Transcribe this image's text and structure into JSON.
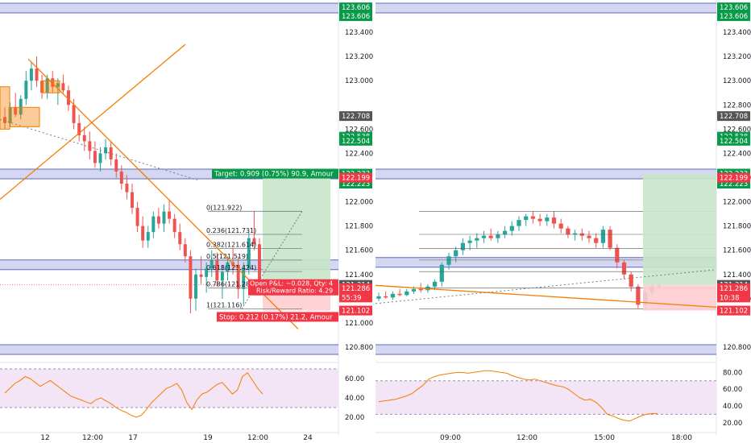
{
  "colors": {
    "up": "#26a69a",
    "down": "#ef5350",
    "zone_fill": "#c5cae9",
    "zone_line": "#5c6bc0",
    "orange": "#f57c00",
    "target_fill": "#c8e6c9",
    "stop_fill": "#ffcdd2",
    "rsi_fill": "#f3e5f5",
    "rsi_line": "#f57c00",
    "label_green": "#089949",
    "label_red": "#f23645",
    "label_dark": "#555555",
    "fib_line": "#787b86"
  },
  "chart_data": [
    {
      "type": "line",
      "panel": "left-candlestick",
      "ylim": [
        120.72,
        123.64
      ],
      "y_ticks": [
        120.8,
        121.0,
        121.4,
        121.6,
        121.8,
        122.0,
        122.4,
        122.6,
        123.0,
        123.2,
        123.4
      ],
      "x_tick_labels": [
        "12",
        "12:00",
        "17",
        "19",
        "12:00",
        "24"
      ],
      "price_labels": [
        {
          "text": "123.606",
          "value": 123.606,
          "kind": "green"
        },
        {
          "text": "123.606",
          "value": 123.606,
          "kind": "green",
          "offset": 1
        },
        {
          "text": "122.708",
          "value": 122.708,
          "kind": "dark"
        },
        {
          "text": "122.538",
          "value": 122.538,
          "kind": "green"
        },
        {
          "text": "122.504",
          "value": 122.504,
          "kind": "green"
        },
        {
          "text": "122.233",
          "value": 122.233,
          "kind": "green"
        },
        {
          "text": "122.223",
          "value": 122.223,
          "kind": "green",
          "offset": 1
        },
        {
          "text": "122.199",
          "value": 122.199,
          "kind": "red"
        },
        {
          "text": "121.314",
          "value": 121.314,
          "kind": "dark"
        },
        {
          "text": "121.286",
          "value": 121.286,
          "kind": "red"
        },
        {
          "text": "55:39",
          "value": 121.21,
          "kind": "red"
        },
        {
          "text": "121.102",
          "value": 121.102,
          "kind": "red"
        }
      ],
      "zones": [
        123.6,
        122.23,
        121.48,
        120.78
      ],
      "fib_levels": [
        {
          "text": "0(121.922)",
          "value": 121.922
        },
        {
          "text": "0.236(121.731)",
          "value": 121.731
        },
        {
          "text": "0.382(121.614)",
          "value": 121.614
        },
        {
          "text": "0.5(121.519)",
          "value": 121.519
        },
        {
          "text": "0.618(121.424)",
          "value": 121.424
        },
        {
          "text": "0.786(121.288)",
          "value": 121.288
        },
        {
          "text": "1(121.116)",
          "value": 121.116
        }
      ],
      "trade_labels": {
        "target": "Target: 0.909 (0.75%) 90.9, Amour",
        "stop": "Stop: 0.212 (0.17%) 21.2, Amour",
        "pnl": "Open P&L: −0.028, Qty: 4",
        "rr": "Risk/Reward Ratio: 4.29"
      },
      "candles": [
        [
          122.7,
          122.78,
          122.6,
          122.65
        ],
        [
          122.65,
          122.82,
          122.62,
          122.78
        ],
        [
          122.78,
          122.9,
          122.7,
          122.72
        ],
        [
          122.72,
          122.88,
          122.68,
          122.85
        ],
        [
          122.85,
          123.08,
          122.8,
          123.0
        ],
        [
          123.0,
          123.15,
          122.92,
          123.1
        ],
        [
          123.1,
          123.2,
          122.95,
          123.0
        ],
        [
          123.0,
          123.05,
          122.85,
          122.9
        ],
        [
          122.9,
          123.05,
          122.85,
          123.02
        ],
        [
          123.02,
          123.08,
          122.9,
          122.95
        ],
        [
          122.95,
          123.02,
          122.8,
          122.98
        ],
        [
          122.98,
          123.05,
          122.9,
          122.92
        ],
        [
          122.92,
          122.96,
          122.75,
          122.8
        ],
        [
          122.8,
          122.85,
          122.6,
          122.65
        ],
        [
          122.65,
          122.72,
          122.5,
          122.55
        ],
        [
          122.55,
          122.62,
          122.42,
          122.5
        ],
        [
          122.5,
          122.58,
          122.35,
          122.42
        ],
        [
          122.42,
          122.5,
          122.28,
          122.32
        ],
        [
          122.32,
          122.45,
          122.25,
          122.4
        ],
        [
          122.4,
          122.52,
          122.35,
          122.45
        ],
        [
          122.45,
          122.5,
          122.3,
          122.35
        ],
        [
          122.35,
          122.4,
          122.2,
          122.25
        ],
        [
          122.25,
          122.3,
          122.1,
          122.15
        ],
        [
          122.15,
          122.22,
          122.02,
          122.08
        ],
        [
          122.08,
          122.15,
          121.9,
          121.95
        ],
        [
          121.95,
          122.0,
          121.75,
          121.8
        ],
        [
          121.8,
          121.88,
          121.62,
          121.68
        ],
        [
          121.68,
          121.8,
          121.62,
          121.75
        ],
        [
          121.75,
          121.92,
          121.7,
          121.88
        ],
        [
          121.88,
          121.95,
          121.78,
          121.82
        ],
        [
          121.82,
          121.98,
          121.75,
          121.92
        ],
        [
          121.92,
          122.02,
          121.82,
          121.86
        ],
        [
          121.86,
          121.9,
          121.7,
          121.75
        ],
        [
          121.75,
          121.82,
          121.6,
          121.65
        ],
        [
          121.65,
          121.7,
          121.5,
          121.55
        ],
        [
          121.55,
          121.6,
          121.08,
          121.2
        ],
        [
          121.2,
          121.45,
          121.1,
          121.4
        ],
        [
          121.4,
          121.55,
          121.32,
          121.38
        ],
        [
          121.38,
          121.5,
          121.25,
          121.45
        ],
        [
          121.45,
          121.6,
          121.38,
          121.52
        ],
        [
          121.52,
          121.58,
          121.3,
          121.35
        ],
        [
          121.35,
          121.48,
          121.2,
          121.42
        ],
        [
          121.42,
          121.55,
          121.35,
          121.5
        ],
        [
          121.5,
          121.62,
          121.4,
          121.48
        ],
        [
          121.48,
          121.55,
          121.2,
          121.28
        ],
        [
          121.28,
          121.5,
          121.15,
          121.45
        ],
        [
          121.45,
          121.75,
          121.4,
          121.7
        ],
        [
          121.7,
          121.92,
          121.6,
          121.65
        ],
        [
          121.65,
          121.7,
          121.25,
          121.3
        ]
      ],
      "rsi": {
        "ylim": [
          10,
          75
        ],
        "ticks": [
          20.0,
          40.0,
          60.0
        ],
        "band": [
          30,
          70
        ],
        "values": [
          45,
          50,
          55,
          58,
          62,
          60,
          56,
          52,
          55,
          58,
          54,
          50,
          46,
          42,
          40,
          38,
          36,
          34,
          38,
          40,
          37,
          34,
          30,
          27,
          25,
          22,
          20,
          22,
          28,
          35,
          40,
          45,
          50,
          52,
          55,
          48,
          35,
          28,
          38,
          44,
          46,
          50,
          54,
          56,
          50,
          44,
          48,
          62,
          66,
          58,
          50,
          44
        ]
      }
    },
    {
      "type": "line",
      "panel": "right-candlestick",
      "ylim": [
        120.72,
        123.64
      ],
      "y_ticks": [
        120.8,
        121.2,
        121.4,
        121.6,
        121.8,
        122.0,
        122.2,
        122.4,
        122.6,
        122.8,
        123.0,
        123.2,
        123.4
      ],
      "x_tick_labels": [
        "09:00",
        "12:00",
        "15:00",
        "18:00"
      ],
      "price_labels": [
        {
          "text": "123.606",
          "value": 123.606,
          "kind": "green"
        },
        {
          "text": "123.606",
          "value": 123.606,
          "kind": "green",
          "offset": 1
        },
        {
          "text": "122.708",
          "value": 122.708,
          "kind": "dark"
        },
        {
          "text": "122.538",
          "value": 122.538,
          "kind": "green"
        },
        {
          "text": "122.504",
          "value": 122.504,
          "kind": "green"
        },
        {
          "text": "122.233",
          "value": 122.233,
          "kind": "green"
        },
        {
          "text": "122.223",
          "value": 122.223,
          "kind": "green",
          "offset": 1
        },
        {
          "text": "122.199",
          "value": 122.199,
          "kind": "red"
        },
        {
          "text": "121.314",
          "value": 121.314,
          "kind": "dark"
        },
        {
          "text": "121.286",
          "value": 121.286,
          "kind": "red"
        },
        {
          "text": "10:38",
          "value": 121.21,
          "kind": "red"
        },
        {
          "text": "121.102",
          "value": 121.102,
          "kind": "red"
        }
      ],
      "zones": [
        123.6,
        122.23,
        121.5,
        120.78
      ],
      "h_levels": [
        121.922,
        121.731,
        121.614,
        121.519,
        121.424,
        121.288,
        121.116
      ],
      "candles": [
        [
          121.2,
          121.25,
          121.18,
          121.22
        ],
        [
          121.22,
          121.26,
          121.2,
          121.21
        ],
        [
          121.21,
          121.26,
          121.19,
          121.24
        ],
        [
          121.24,
          121.28,
          121.22,
          121.23
        ],
        [
          121.23,
          121.28,
          121.22,
          121.26
        ],
        [
          121.26,
          121.3,
          121.24,
          121.28
        ],
        [
          121.28,
          121.33,
          121.25,
          121.27
        ],
        [
          121.27,
          121.32,
          121.25,
          121.3
        ],
        [
          121.3,
          121.36,
          121.27,
          121.34
        ],
        [
          121.34,
          121.5,
          121.3,
          121.48
        ],
        [
          121.48,
          121.58,
          121.44,
          121.55
        ],
        [
          121.55,
          121.63,
          121.5,
          121.6
        ],
        [
          121.6,
          121.7,
          121.56,
          121.66
        ],
        [
          121.66,
          121.72,
          121.6,
          121.68
        ],
        [
          121.68,
          121.74,
          121.62,
          121.7
        ],
        [
          121.7,
          121.76,
          121.66,
          121.72
        ],
        [
          121.72,
          121.78,
          121.68,
          121.7
        ],
        [
          121.7,
          121.76,
          121.66,
          121.73
        ],
        [
          121.73,
          121.8,
          121.7,
          121.76
        ],
        [
          121.76,
          121.84,
          121.72,
          121.8
        ],
        [
          121.8,
          121.88,
          121.76,
          121.85
        ],
        [
          121.85,
          121.9,
          121.8,
          121.88
        ],
        [
          121.88,
          121.92,
          121.82,
          121.86
        ],
        [
          121.86,
          121.9,
          121.8,
          121.84
        ],
        [
          121.84,
          121.9,
          121.8,
          121.87
        ],
        [
          121.87,
          121.92,
          121.78,
          121.82
        ],
        [
          121.82,
          121.86,
          121.74,
          121.78
        ],
        [
          121.78,
          121.8,
          121.7,
          121.73
        ],
        [
          121.73,
          121.77,
          121.68,
          121.74
        ],
        [
          121.74,
          121.78,
          121.68,
          121.72
        ],
        [
          121.72,
          121.76,
          121.66,
          121.7
        ],
        [
          121.7,
          121.74,
          121.62,
          121.66
        ],
        [
          121.66,
          121.8,
          121.62,
          121.77
        ],
        [
          121.77,
          121.8,
          121.6,
          121.62
        ],
        [
          121.62,
          121.65,
          121.45,
          121.5
        ],
        [
          121.5,
          121.52,
          121.36,
          121.4
        ],
        [
          121.4,
          121.42,
          121.26,
          121.3
        ],
        [
          121.3,
          121.32,
          121.12,
          121.15
        ],
        [
          121.15,
          121.28,
          121.12,
          121.25
        ],
        [
          121.25,
          121.32,
          121.22,
          121.3
        ],
        [
          121.3,
          121.33,
          121.28,
          121.31
        ]
      ],
      "rsi": {
        "ylim": [
          15,
          90
        ],
        "ticks": [
          20.0,
          40.0,
          60.0,
          80.0
        ],
        "band": [
          30,
          70
        ],
        "values": [
          45,
          46,
          47,
          48,
          50,
          52,
          55,
          60,
          65,
          72,
          75,
          77,
          78,
          79,
          80,
          80,
          79,
          80,
          81,
          82,
          82,
          81,
          80,
          79,
          76,
          74,
          72,
          71,
          72,
          70,
          68,
          66,
          64,
          63,
          60,
          55,
          50,
          47,
          48,
          44,
          38,
          30,
          28,
          25,
          23,
          22,
          25,
          28,
          30,
          31,
          31
        ]
      }
    }
  ]
}
